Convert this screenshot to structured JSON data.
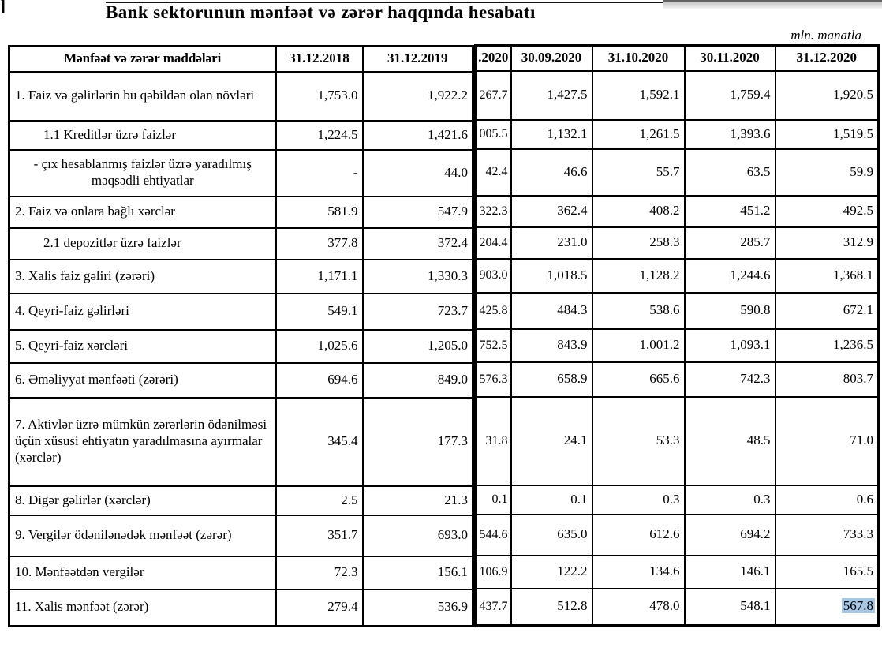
{
  "page": {
    "corner_glyph": "]",
    "title": "Bank sektorunun mənfəət və zərər haqqında hesabatı",
    "unit_note": "mln. manatla"
  },
  "colors": {
    "selection_highlight": "#a7c7e5",
    "table_border": "#000000"
  },
  "table": {
    "label_header": "Mənfəət və zərər maddələri",
    "left_headers": [
      "31.12.2018",
      "31.12.2019"
    ],
    "right_headers": [
      ".2020",
      "30.09.2020",
      "31.10.2020",
      "30.11.2020",
      "31.12.2020"
    ],
    "rows": [
      {
        "label": "1. Faiz və gəlirlərin bu qəbildən olan növləri",
        "align": "left",
        "left": [
          "1,753.0",
          "1,922.2"
        ],
        "right": [
          "267.7",
          "1,427.5",
          "1,592.1",
          "1,759.4",
          "1,920.5"
        ]
      },
      {
        "label": "1.1 Kreditlər üzrə faizlər",
        "align": "indent",
        "left": [
          "1,224.5",
          "1,421.6"
        ],
        "right": [
          "005.5",
          "1,132.1",
          "1,261.5",
          "1,393.6",
          "1,519.5"
        ]
      },
      {
        "label": "-  çıx hesablanmış faizlər üzrə yaradılmış məqsədli ehtiyatlar",
        "align": "center",
        "left": [
          "-",
          "44.0"
        ],
        "right": [
          "42.4",
          "46.6",
          "55.7",
          "63.5",
          "59.9"
        ]
      },
      {
        "label": "2. Faiz və onlara bağlı xərclər",
        "align": "left",
        "left": [
          "581.9",
          "547.9"
        ],
        "right": [
          "322.3",
          "362.4",
          "408.2",
          "451.2",
          "492.5"
        ]
      },
      {
        "label": "2.1 depozitlər üzrə faizlər",
        "align": "indent",
        "left": [
          "377.8",
          "372.4"
        ],
        "right": [
          "204.4",
          "231.0",
          "258.3",
          "285.7",
          "312.9"
        ]
      },
      {
        "label": "3. Xalis faiz gəliri (zərəri)",
        "align": "left",
        "left": [
          "1,171.1",
          "1,330.3"
        ],
        "right": [
          "903.0",
          "1,018.5",
          "1,128.2",
          "1,244.6",
          "1,368.1"
        ]
      },
      {
        "label": "4. Qeyri-faiz gəlirləri",
        "align": "left",
        "left": [
          "549.1",
          "723.7"
        ],
        "right": [
          "425.8",
          "484.3",
          "538.6",
          "590.8",
          "672.1"
        ]
      },
      {
        "label": "5. Qeyri-faiz xərcləri",
        "align": "left",
        "left": [
          "1,025.6",
          "1,205.0"
        ],
        "right": [
          "752.5",
          "843.9",
          "1,001.2",
          "1,093.1",
          "1,236.5"
        ]
      },
      {
        "label": "6. Əməliyyat mənfəəti (zərəri)",
        "align": "left",
        "left": [
          "694.6",
          "849.0"
        ],
        "right": [
          "576.3",
          "658.9",
          "665.6",
          "742.3",
          "803.7"
        ]
      },
      {
        "label": "7. Aktivlər üzrə mümkün zərərlərin ödənilməsi üçün xüsusi ehtiyatın yaradılmasına ayırmalar (xərclər)",
        "align": "left",
        "left": [
          "345.4",
          "177.3"
        ],
        "right": [
          "31.8",
          "24.1",
          "53.3",
          "48.5",
          "71.0"
        ]
      },
      {
        "label": "8. Digər gəlirlər (xərclər)",
        "align": "left",
        "left": [
          "2.5",
          "21.3"
        ],
        "right": [
          "0.1",
          "0.1",
          "0.3",
          "0.3",
          "0.6"
        ]
      },
      {
        "label": "9. Vergilər ödənilənədək mənfəət (zərər)",
        "align": "left",
        "left": [
          "351.7",
          "693.0"
        ],
        "right": [
          "544.6",
          "635.0",
          "612.6",
          "694.2",
          "733.3"
        ]
      },
      {
        "label": "10. Mənfəətdən vergilər",
        "align": "left",
        "left": [
          "72.3",
          "156.1"
        ],
        "right": [
          "106.9",
          "122.2",
          "134.6",
          "146.1",
          "165.5"
        ]
      },
      {
        "label": "11. Xalis mənfəət (zərər)",
        "align": "left",
        "left": [
          "279.4",
          "536.9"
        ],
        "right": [
          "437.7",
          "512.8",
          "478.0",
          "548.1",
          "567.8"
        ],
        "highlight_last": true
      }
    ]
  }
}
